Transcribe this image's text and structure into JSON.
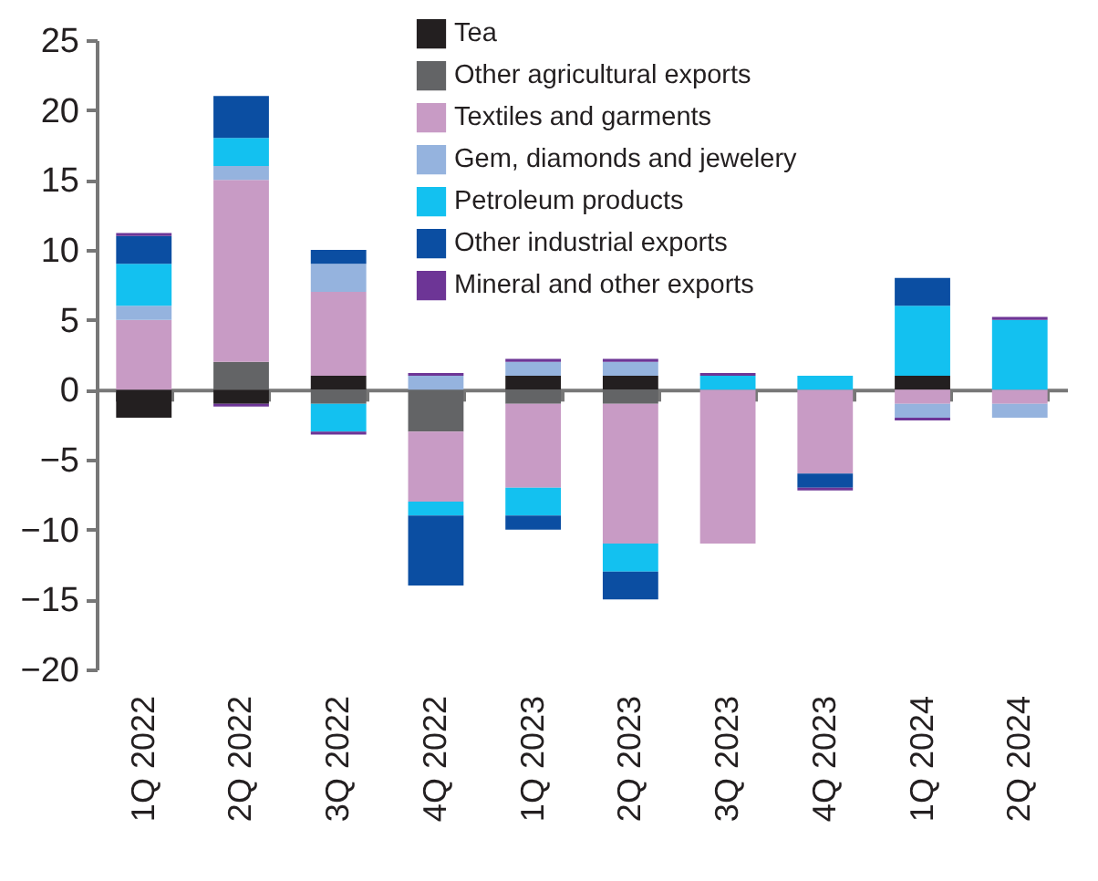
{
  "chart_data": {
    "type": "bar",
    "stacked": true,
    "categories": [
      "1Q 2022",
      "2Q 2022",
      "3Q 2022",
      "4Q 2022",
      "1Q 2023",
      "2Q 2023",
      "3Q 2023",
      "4Q 2023",
      "1Q 2024",
      "2Q 2024"
    ],
    "series": [
      {
        "name": "Tea",
        "color": "#231f20",
        "values": [
          -2,
          -1,
          1,
          0,
          1,
          1,
          0,
          0,
          1,
          0
        ]
      },
      {
        "name": "Other agricultural exports",
        "color": "#636466",
        "values": [
          0,
          2,
          -1,
          -3,
          -1,
          -1,
          0,
          0,
          0,
          0
        ]
      },
      {
        "name": "Textiles and garments",
        "color": "#c89bc5",
        "values": [
          5,
          13,
          6,
          -5,
          -6,
          -10,
          -11,
          -6,
          -1,
          -1
        ]
      },
      {
        "name": "Gem, diamonds and jewelery",
        "color": "#95b3de",
        "values": [
          1,
          1,
          2,
          1,
          1,
          1,
          0,
          0,
          -1,
          -1
        ]
      },
      {
        "name": "Petroleum products",
        "color": "#13c1f0",
        "values": [
          3,
          2,
          -2,
          -1,
          -2,
          -2,
          1,
          1,
          5,
          5
        ]
      },
      {
        "name": "Other industrial exports",
        "color": "#0b4ea2",
        "values": [
          2,
          3,
          1,
          -5,
          -1,
          -2,
          0,
          -1,
          2,
          0
        ]
      },
      {
        "name": "Mineral and other exports",
        "color": "#6d3596",
        "values": [
          0.2,
          -0.2,
          -0.2,
          0.2,
          0.2,
          0.2,
          0.2,
          -0.2,
          -0.2,
          0.2
        ]
      }
    ],
    "ylim": [
      -20,
      25
    ],
    "yticks": [
      -20,
      -15,
      -10,
      -5,
      0,
      5,
      10,
      15,
      20,
      25
    ],
    "legend": "top right"
  }
}
